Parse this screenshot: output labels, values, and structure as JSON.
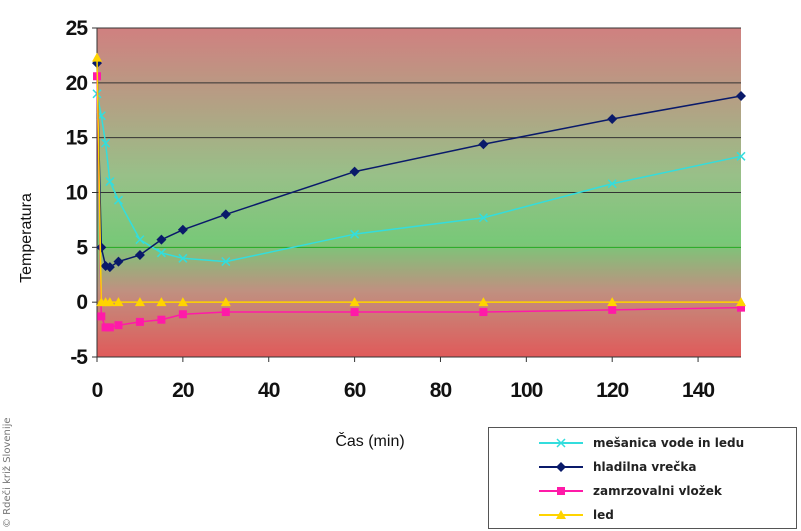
{
  "chart_data": {
    "type": "line",
    "title": "",
    "xlabel": "Čas (min)",
    "ylabel": "Temperatura",
    "xlim": [
      0,
      150
    ],
    "ylim": [
      -5,
      25
    ],
    "xticks": [
      "0",
      "20",
      "40",
      "60",
      "80",
      "100",
      "120",
      "140"
    ],
    "yticks": [
      "-5",
      "0",
      "5",
      "10",
      "15",
      "20",
      "25"
    ],
    "grid": true,
    "legend_position": "bottom-right",
    "x": [
      0,
      1,
      2,
      3,
      5,
      10,
      15,
      20,
      30,
      60,
      90,
      120,
      150
    ],
    "series": [
      {
        "name": "mešanica vode in ledu",
        "color": "#33dddd",
        "marker": "x",
        "values": [
          19,
          17,
          14.5,
          11,
          9.3,
          5.7,
          4.5,
          4,
          3.7,
          6.2,
          7.7,
          10.8,
          13.3
        ]
      },
      {
        "name": "hladilna vrečka",
        "color": "#0a1a6a",
        "marker": "diamond",
        "values": [
          21.8,
          5,
          3.3,
          3.2,
          3.7,
          4.3,
          5.7,
          6.6,
          8,
          11.9,
          14.4,
          16.7,
          18.8
        ]
      },
      {
        "name": "zamrzovalni vložek",
        "color": "#ff1aa8",
        "marker": "square",
        "values": [
          20.6,
          -1.3,
          -2.3,
          -2.3,
          -2.1,
          -1.8,
          -1.6,
          -1.1,
          -0.9,
          -0.9,
          -0.9,
          -0.7,
          -0.5
        ]
      },
      {
        "name": "led",
        "color": "#ffd400",
        "marker": "triangle",
        "values": [
          22.3,
          0,
          0,
          0,
          0,
          0,
          0,
          0,
          0,
          0,
          0,
          0,
          0
        ]
      }
    ]
  },
  "watermark": "© Rdeči križ Slovenije"
}
